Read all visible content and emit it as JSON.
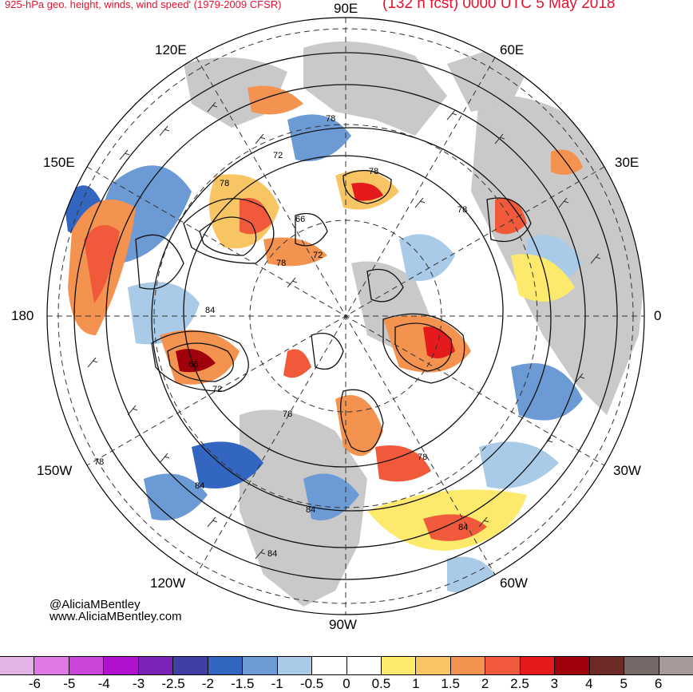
{
  "title": {
    "left": "925-hPa geo. height, winds, wind speed' (1979-2009 CFSR)",
    "right": "(132 h fcst) 0000 UTC 5 May 2018"
  },
  "lon_labels": {
    "e90": "90E",
    "e120": "120E",
    "e60": "60E",
    "e150": "150E",
    "e30": "30E",
    "w180": "180",
    "zero": "0",
    "w150": "150W",
    "w30": "30W",
    "w120": "120W",
    "w60": "60W",
    "w90": "90W"
  },
  "contour_labels": [
    "78",
    "72",
    "78",
    "78",
    "66",
    "72",
    "78",
    "78",
    "84",
    "66",
    "72",
    "78",
    "78",
    "84",
    "84",
    "84",
    "78",
    "84"
  ],
  "credit": {
    "handle": "@AliciaMBentley",
    "site": "www.AliciaMBentley.com"
  },
  "colorbar": {
    "colors": [
      "#e3b2e6",
      "#e079e6",
      "#cc44d9",
      "#b012d0",
      "#7b22b7",
      "#3f3fa4",
      "#3366c0",
      "#6c9ad4",
      "#a9cbe8",
      "#ffffff",
      "#ffffff",
      "#fde96b",
      "#f8c565",
      "#f4934f",
      "#f05a3b",
      "#e41a1c",
      "#a0000c",
      "#6e2a26",
      "#776868",
      "#a69a9a"
    ],
    "labels": [
      "-6",
      "-5",
      "-4",
      "-3",
      "-2.5",
      "-2",
      "-1.5",
      "-1",
      "-0.5",
      "0",
      "0.5",
      "1",
      "1.5",
      "2",
      "2.5",
      "3",
      "4",
      "5",
      "6"
    ]
  }
}
